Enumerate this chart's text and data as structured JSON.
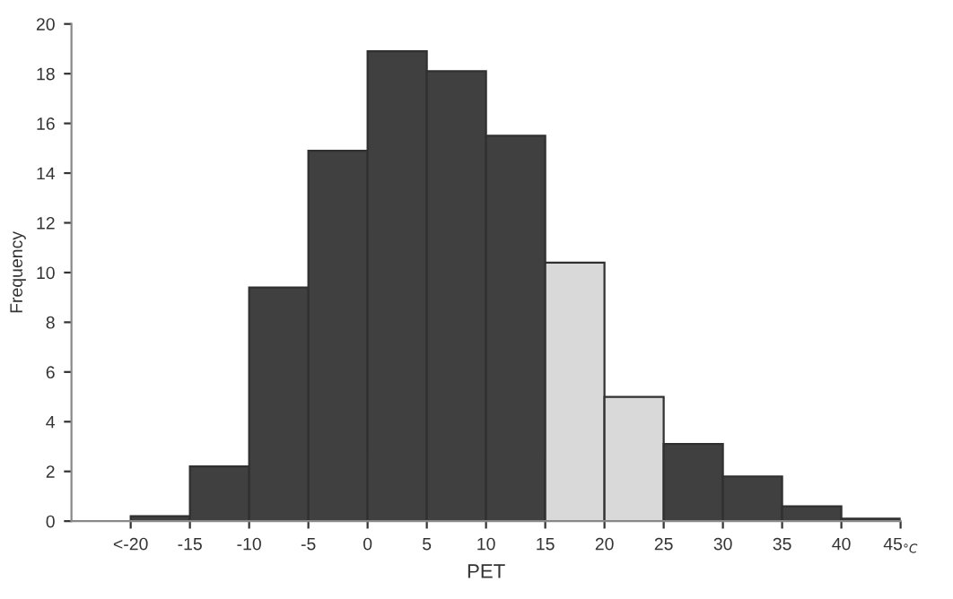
{
  "chart_data": {
    "type": "histogram",
    "xlabel": "PET",
    "ylabel": "Frequency",
    "bins": [
      -20,
      -15,
      -10,
      -5,
      0,
      5,
      10,
      15,
      20,
      25,
      30,
      35,
      40,
      45
    ],
    "values": [
      0.2,
      2.2,
      9.4,
      14.9,
      18.9,
      18.1,
      15.5,
      10.4,
      5.0,
      3.1,
      1.8,
      0.6,
      0.1
    ],
    "colors": [
      "#404040",
      "#404040",
      "#404040",
      "#404040",
      "#404040",
      "#404040",
      "#404040",
      "#d9d9d9",
      "#d9d9d9",
      "#404040",
      "#404040",
      "#404040",
      "#404040"
    ],
    "xlim": [
      -25,
      45
    ],
    "ylim": [
      0,
      20
    ],
    "xticks": [
      {
        "value": -20,
        "label": "<-20"
      },
      -15,
      -10,
      -5,
      0,
      5,
      10,
      15,
      20,
      25,
      30,
      35,
      40,
      {
        "value": 45,
        "label": "45$_{°C}$"
      }
    ],
    "yticks": [
      0,
      2,
      4,
      6,
      8,
      10,
      12,
      14,
      16,
      18,
      20
    ],
    "grid": false
  }
}
